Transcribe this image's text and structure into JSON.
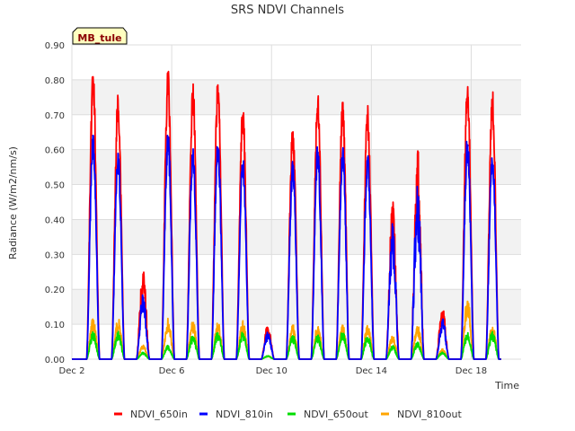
{
  "chart_data": {
    "type": "line",
    "title": "SRS NDVI Channels",
    "xlabel": "Time",
    "ylabel": "Radiance (W/m2/nm/s)",
    "ylim": [
      0,
      0.9
    ],
    "xlim": [
      2.0,
      20.0
    ],
    "x_unit": "day of December",
    "yticks": [
      0.0,
      0.1,
      0.2,
      0.3,
      0.4,
      0.5,
      0.6,
      0.7,
      0.8,
      0.9
    ],
    "ytick_labels": [
      "0.00",
      "0.10",
      "0.20",
      "0.30",
      "0.40",
      "0.50",
      "0.60",
      "0.70",
      "0.80",
      "0.90"
    ],
    "xticks": [
      2,
      6,
      10,
      14,
      18
    ],
    "xtick_labels": [
      "Dec 2",
      "Dec 6",
      "Dec 10",
      "Dec 14",
      "Dec 18"
    ],
    "annotation": "MB_tule",
    "legend_position": "bottom-center",
    "peak_days": [
      2.85,
      3.85,
      4.85,
      5.85,
      6.85,
      7.85,
      8.85,
      9.85,
      10.85,
      11.85,
      12.85,
      13.85,
      14.85,
      15.85,
      16.85,
      17.85,
      18.85
    ],
    "series": [
      {
        "name": "NDVI_650in",
        "color": "#ff0000",
        "daily_peaks": [
          0.83,
          0.77,
          0.26,
          0.84,
          0.8,
          0.81,
          0.74,
          0.1,
          0.68,
          0.77,
          0.75,
          0.73,
          0.46,
          0.62,
          0.15,
          0.81,
          0.78
        ]
      },
      {
        "name": "NDVI_810in",
        "color": "#0000ff",
        "daily_peaks": [
          0.65,
          0.6,
          0.19,
          0.66,
          0.62,
          0.63,
          0.59,
          0.08,
          0.57,
          0.62,
          0.62,
          0.59,
          0.39,
          0.52,
          0.12,
          0.64,
          0.61
        ]
      },
      {
        "name": "NDVI_650out",
        "color": "#00dd00",
        "daily_peaks": [
          0.08,
          0.08,
          0.02,
          0.04,
          0.07,
          0.08,
          0.08,
          0.01,
          0.07,
          0.07,
          0.08,
          0.07,
          0.04,
          0.05,
          0.02,
          0.08,
          0.08
        ]
      },
      {
        "name": "NDVI_810out",
        "color": "#ffa500",
        "daily_peaks": [
          0.12,
          0.12,
          0.04,
          0.12,
          0.11,
          0.11,
          0.11,
          0.01,
          0.1,
          0.1,
          0.1,
          0.1,
          0.07,
          0.1,
          0.03,
          0.18,
          0.1
        ]
      }
    ]
  }
}
